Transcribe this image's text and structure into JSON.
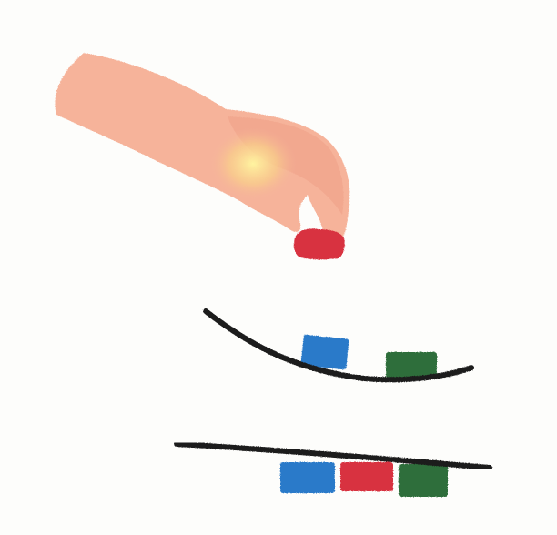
{
  "scene": {
    "subject": "hand-placing-block-illustration",
    "colors": {
      "background": "#fdfdfb",
      "skin": "#f6b39a",
      "skin_shadow": "#ef9f86",
      "highlight": "#fff5a8",
      "outline": "#1b1b1b",
      "red_block": "#d8313f",
      "blue_block": "#2b7ac9",
      "green_block": "#2f6e3a"
    }
  }
}
